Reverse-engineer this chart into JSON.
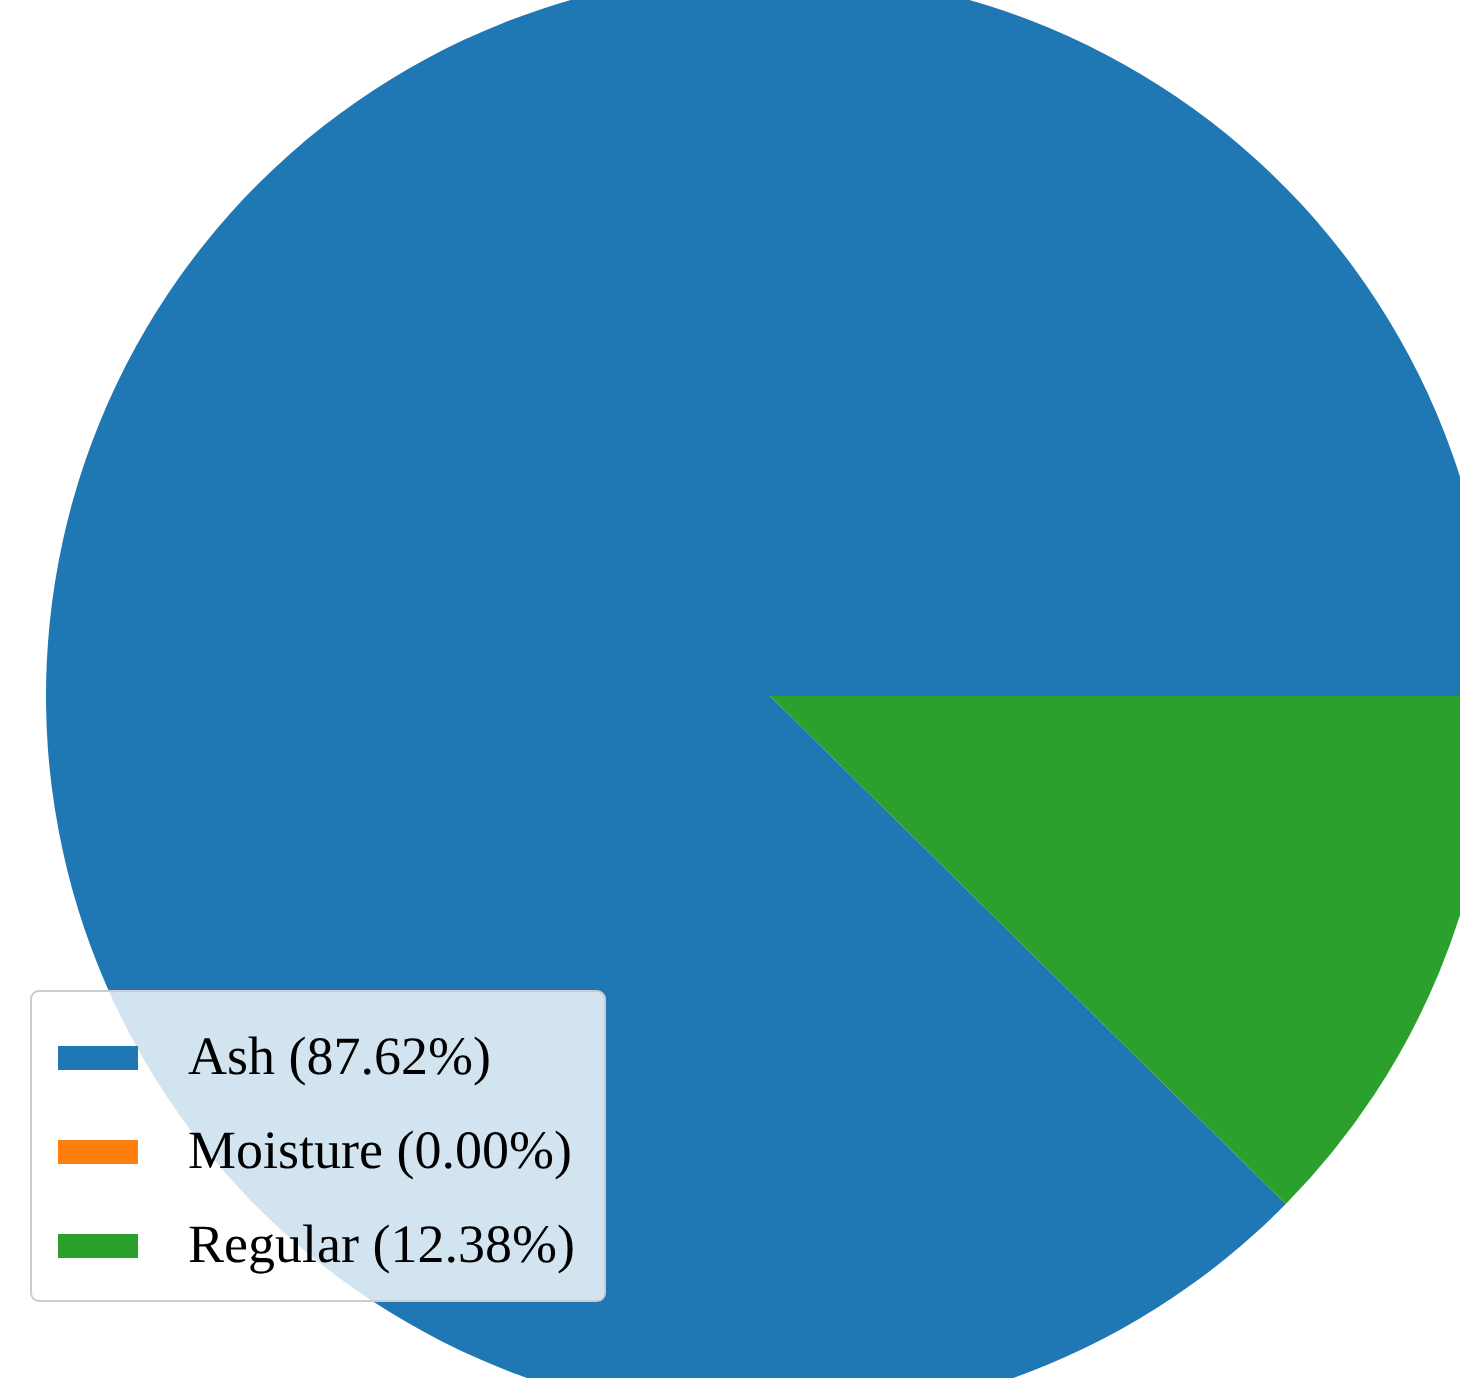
{
  "chart_data": {
    "type": "pie",
    "categories": [
      "Ash (87.62%)",
      "Moisture (0.00%)",
      "Regular (12.38%)"
    ],
    "values": [
      87.62,
      0.0,
      12.38
    ],
    "colors": [
      "#1f77b4",
      "#ff7f0e",
      "#2ca02c"
    ],
    "legend": "bottom left"
  }
}
